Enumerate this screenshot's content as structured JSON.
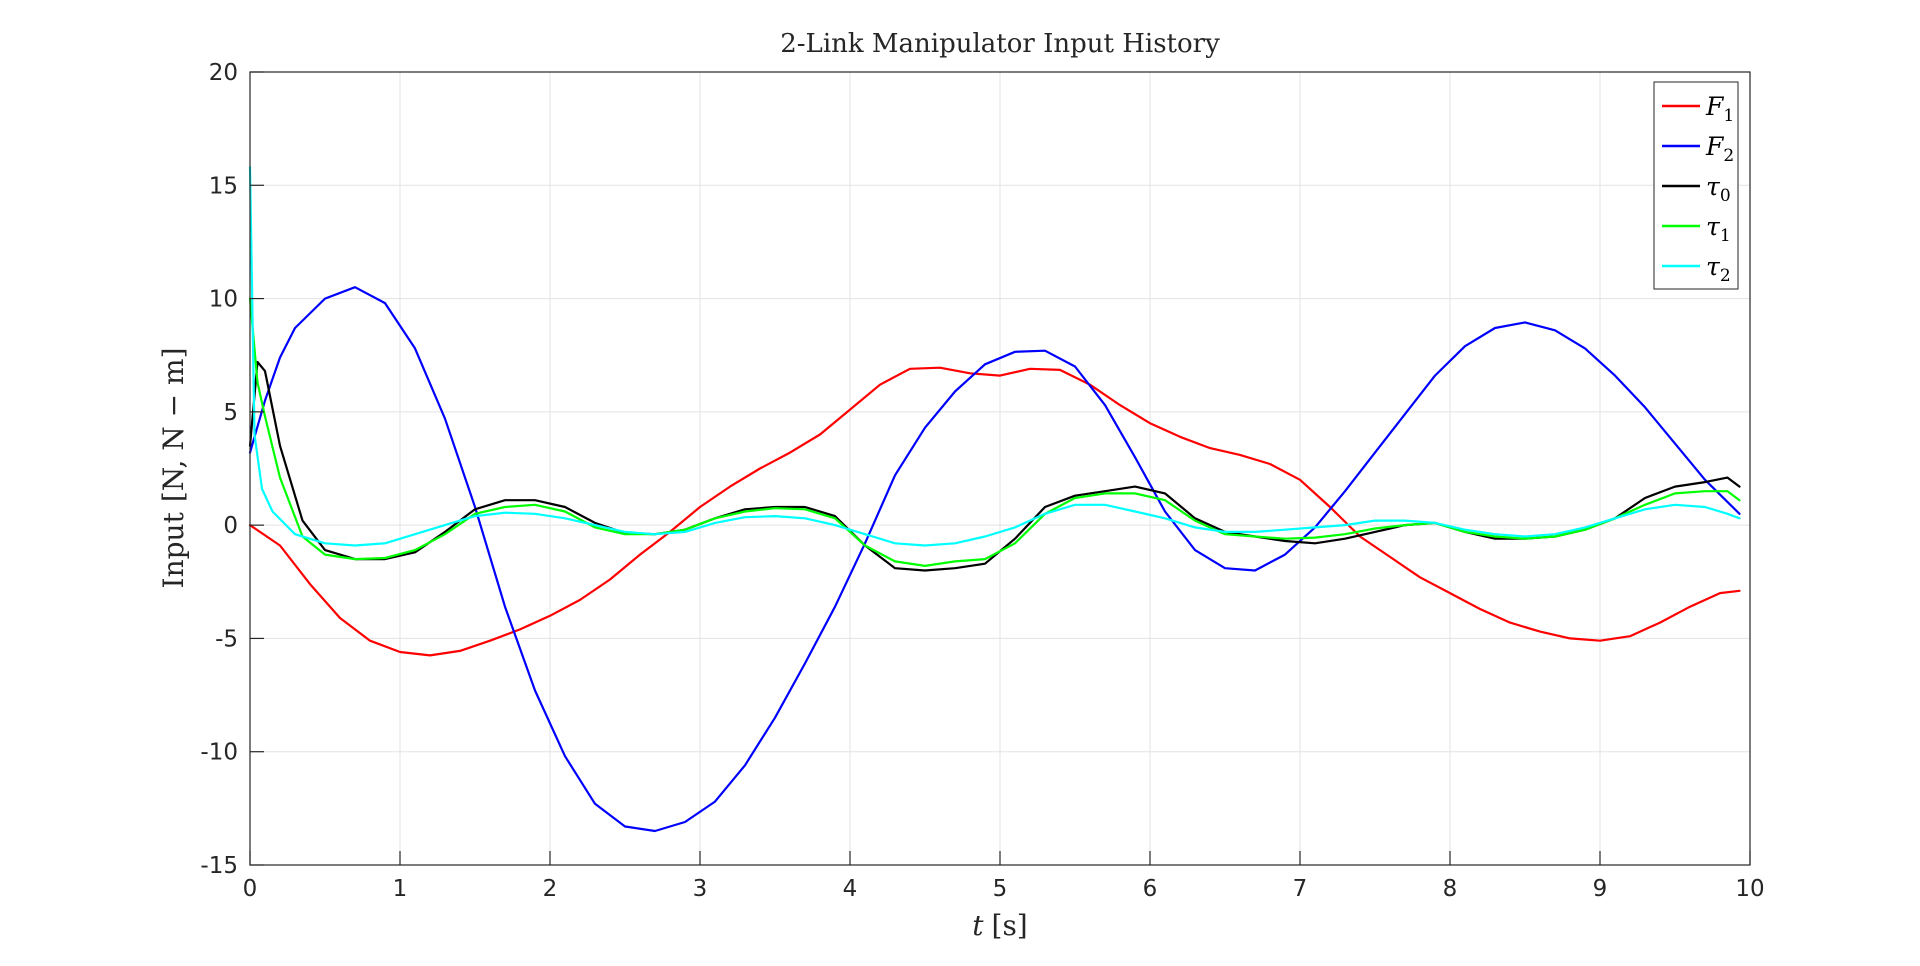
{
  "chart_data": {
    "type": "line",
    "title": "2-Link Manipulator Input History",
    "xlabel": {
      "main": "t",
      "unit": "[s]"
    },
    "ylabel": {
      "main": "Input",
      "unit": "[N, N − m]"
    },
    "xlim": [
      0,
      10
    ],
    "ylim": [
      -15,
      20
    ],
    "xticks": [
      0,
      1,
      2,
      3,
      4,
      5,
      6,
      7,
      8,
      9,
      10
    ],
    "yticks": [
      -15,
      -10,
      -5,
      0,
      5,
      10,
      15,
      20
    ],
    "grid": true,
    "legend_position": "top-right",
    "series": [
      {
        "name": "F",
        "subscript": "1",
        "color": "#ff0000",
        "x": [
          0,
          0.2,
          0.4,
          0.6,
          0.8,
          1.0,
          1.2,
          1.4,
          1.6,
          1.8,
          2.0,
          2.2,
          2.4,
          2.6,
          2.8,
          3.0,
          3.2,
          3.4,
          3.6,
          3.8,
          4.0,
          4.2,
          4.4,
          4.6,
          4.8,
          5.0,
          5.2,
          5.4,
          5.6,
          5.8,
          6.0,
          6.2,
          6.4,
          6.6,
          6.8,
          7.0,
          7.2,
          7.4,
          7.6,
          7.8,
          8.0,
          8.2,
          8.4,
          8.6,
          8.8,
          9.0,
          9.2,
          9.4,
          9.6,
          9.8,
          9.93
        ],
        "y": [
          0,
          -0.9,
          -2.6,
          -4.1,
          -5.1,
          -5.6,
          -5.75,
          -5.55,
          -5.1,
          -4.6,
          -4.0,
          -3.3,
          -2.4,
          -1.3,
          -0.3,
          0.8,
          1.7,
          2.5,
          3.2,
          4.0,
          5.1,
          6.2,
          6.9,
          6.95,
          6.7,
          6.6,
          6.9,
          6.85,
          6.2,
          5.3,
          4.5,
          3.9,
          3.4,
          3.1,
          2.7,
          2.0,
          0.8,
          -0.5,
          -1.4,
          -2.3,
          -3.0,
          -3.7,
          -4.3,
          -4.7,
          -5.0,
          -5.1,
          -4.9,
          -4.3,
          -3.6,
          -3.0,
          -2.9
        ]
      },
      {
        "name": "F",
        "subscript": "2",
        "color": "#0000ff",
        "x": [
          0,
          0.1,
          0.2,
          0.3,
          0.5,
          0.7,
          0.9,
          1.1,
          1.3,
          1.5,
          1.7,
          1.9,
          2.1,
          2.3,
          2.5,
          2.7,
          2.9,
          3.1,
          3.3,
          3.5,
          3.7,
          3.9,
          4.1,
          4.3,
          4.5,
          4.7,
          4.9,
          5.1,
          5.3,
          5.5,
          5.7,
          5.9,
          6.1,
          6.3,
          6.5,
          6.7,
          6.9,
          7.1,
          7.3,
          7.5,
          7.7,
          7.9,
          8.1,
          8.3,
          8.5,
          8.7,
          8.9,
          9.1,
          9.3,
          9.5,
          9.7,
          9.93
        ],
        "y": [
          3.2,
          5.5,
          7.4,
          8.7,
          10.0,
          10.5,
          9.8,
          7.8,
          4.7,
          0.8,
          -3.6,
          -7.3,
          -10.2,
          -12.3,
          -13.3,
          -13.5,
          -13.1,
          -12.2,
          -10.6,
          -8.5,
          -6.1,
          -3.6,
          -0.8,
          2.2,
          4.3,
          5.9,
          7.1,
          7.65,
          7.7,
          7.0,
          5.3,
          3.0,
          0.6,
          -1.1,
          -1.9,
          -2.0,
          -1.3,
          -0.1,
          1.5,
          3.2,
          4.9,
          6.6,
          7.9,
          8.7,
          8.95,
          8.6,
          7.8,
          6.6,
          5.2,
          3.6,
          2.0,
          0.5
        ]
      },
      {
        "name": "τ",
        "subscript": "0",
        "color": "#000000",
        "x": [
          0,
          0.05,
          0.1,
          0.2,
          0.35,
          0.5,
          0.7,
          0.9,
          1.1,
          1.3,
          1.5,
          1.7,
          1.9,
          2.1,
          2.3,
          2.5,
          2.7,
          2.9,
          3.1,
          3.3,
          3.5,
          3.7,
          3.9,
          4.1,
          4.3,
          4.5,
          4.7,
          4.9,
          5.1,
          5.3,
          5.5,
          5.7,
          5.9,
          6.1,
          6.3,
          6.5,
          6.7,
          6.9,
          7.1,
          7.3,
          7.5,
          7.7,
          7.9,
          8.1,
          8.3,
          8.5,
          8.7,
          8.9,
          9.1,
          9.3,
          9.5,
          9.7,
          9.85,
          9.93
        ],
        "y": [
          3.5,
          7.2,
          6.8,
          3.5,
          0.2,
          -1.1,
          -1.5,
          -1.5,
          -1.2,
          -0.3,
          0.7,
          1.1,
          1.1,
          0.8,
          0.1,
          -0.35,
          -0.4,
          -0.2,
          0.3,
          0.7,
          0.8,
          0.8,
          0.4,
          -0.9,
          -1.9,
          -2.0,
          -1.9,
          -1.7,
          -0.6,
          0.8,
          1.3,
          1.5,
          1.7,
          1.4,
          0.3,
          -0.3,
          -0.5,
          -0.7,
          -0.8,
          -0.6,
          -0.3,
          0.0,
          0.1,
          -0.3,
          -0.6,
          -0.6,
          -0.5,
          -0.2,
          0.3,
          1.2,
          1.7,
          1.9,
          2.1,
          1.7
        ]
      },
      {
        "name": "τ",
        "subscript": "1",
        "color": "#00ff00",
        "x": [
          0,
          0.05,
          0.1,
          0.2,
          0.35,
          0.5,
          0.7,
          0.9,
          1.1,
          1.3,
          1.5,
          1.7,
          1.9,
          2.1,
          2.3,
          2.5,
          2.7,
          2.9,
          3.1,
          3.3,
          3.5,
          3.7,
          3.9,
          4.1,
          4.3,
          4.5,
          4.7,
          4.9,
          5.1,
          5.3,
          5.5,
          5.7,
          5.9,
          6.1,
          6.3,
          6.5,
          6.7,
          6.9,
          7.1,
          7.3,
          7.5,
          7.7,
          7.9,
          8.1,
          8.3,
          8.5,
          8.7,
          8.9,
          9.1,
          9.3,
          9.5,
          9.7,
          9.85,
          9.93
        ],
        "y": [
          10,
          6.3,
          4.8,
          2.1,
          -0.5,
          -1.3,
          -1.5,
          -1.45,
          -1.1,
          -0.4,
          0.5,
          0.8,
          0.9,
          0.6,
          -0.1,
          -0.4,
          -0.4,
          -0.2,
          0.3,
          0.6,
          0.75,
          0.7,
          0.3,
          -0.9,
          -1.6,
          -1.8,
          -1.6,
          -1.5,
          -0.8,
          0.5,
          1.2,
          1.4,
          1.4,
          1.1,
          0.2,
          -0.4,
          -0.5,
          -0.6,
          -0.55,
          -0.4,
          -0.15,
          0.0,
          0.1,
          -0.3,
          -0.5,
          -0.6,
          -0.5,
          -0.2,
          0.3,
          0.9,
          1.4,
          1.5,
          1.5,
          1.1
        ]
      },
      {
        "name": "τ",
        "subscript": "2",
        "color": "#00ffff",
        "x": [
          0,
          0.03,
          0.08,
          0.15,
          0.3,
          0.5,
          0.7,
          0.9,
          1.1,
          1.3,
          1.5,
          1.7,
          1.9,
          2.1,
          2.3,
          2.5,
          2.7,
          2.9,
          3.1,
          3.3,
          3.5,
          3.7,
          3.9,
          4.1,
          4.3,
          4.5,
          4.7,
          4.9,
          5.1,
          5.3,
          5.5,
          5.7,
          5.9,
          6.1,
          6.3,
          6.5,
          6.7,
          6.9,
          7.1,
          7.3,
          7.5,
          7.7,
          7.9,
          8.1,
          8.3,
          8.5,
          8.7,
          8.9,
          9.1,
          9.3,
          9.5,
          9.7,
          9.85,
          9.93
        ],
        "y": [
          15.8,
          4.0,
          1.6,
          0.6,
          -0.4,
          -0.8,
          -0.9,
          -0.8,
          -0.4,
          0.0,
          0.4,
          0.55,
          0.5,
          0.3,
          0.0,
          -0.3,
          -0.4,
          -0.3,
          0.1,
          0.35,
          0.4,
          0.3,
          0.0,
          -0.4,
          -0.8,
          -0.9,
          -0.8,
          -0.5,
          -0.1,
          0.5,
          0.9,
          0.9,
          0.6,
          0.3,
          -0.1,
          -0.3,
          -0.3,
          -0.2,
          -0.1,
          0.0,
          0.2,
          0.2,
          0.1,
          -0.2,
          -0.4,
          -0.5,
          -0.4,
          -0.1,
          0.3,
          0.7,
          0.9,
          0.8,
          0.5,
          0.3
        ]
      }
    ]
  }
}
